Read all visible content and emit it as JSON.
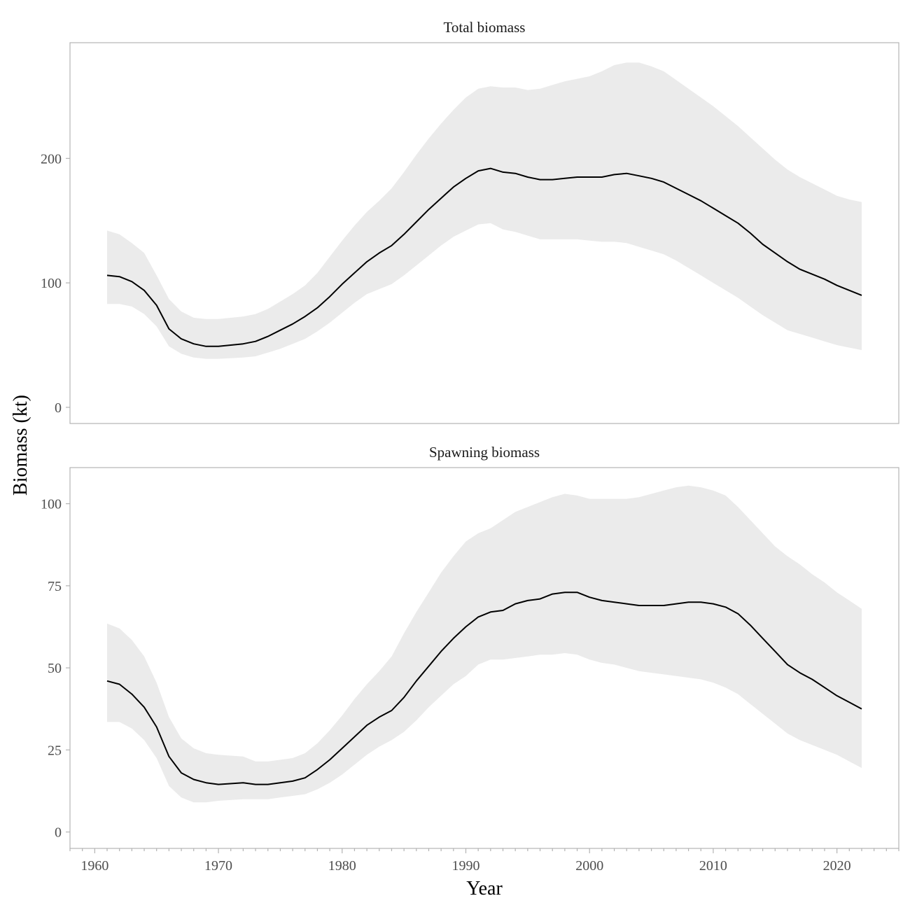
{
  "chart_data": {
    "type": "line",
    "xlabel": "Year",
    "ylabel": "Biomass (kt)",
    "shared_x_ticks": [
      1960,
      1970,
      1980,
      1990,
      2000,
      2010,
      2020
    ],
    "xlim": [
      1958,
      2025
    ],
    "panels": [
      {
        "title": "Total biomass",
        "ylim": [
          -13,
          293
        ],
        "y_ticks": [
          0,
          100,
          200
        ],
        "x": [
          1961,
          1962,
          1963,
          1964,
          1965,
          1966,
          1967,
          1968,
          1969,
          1970,
          1972,
          1973,
          1974,
          1975,
          1976,
          1977,
          1978,
          1979,
          1980,
          1981,
          1982,
          1983,
          1984,
          1985,
          1986,
          1987,
          1988,
          1989,
          1990,
          1991,
          1992,
          1993,
          1994,
          1995,
          1996,
          1997,
          1998,
          1999,
          2000,
          2001,
          2002,
          2003,
          2004,
          2005,
          2006,
          2007,
          2008,
          2009,
          2010,
          2011,
          2012,
          2013,
          2014,
          2015,
          2016,
          2017,
          2018,
          2019,
          2020,
          2021,
          2022
        ],
        "estimate": [
          106,
          105,
          101,
          94,
          82,
          63,
          55,
          51,
          49,
          49,
          51,
          53,
          57,
          62,
          67,
          73,
          80,
          89,
          99,
          108,
          117,
          124,
          130,
          139,
          149,
          159,
          168,
          177,
          184,
          190,
          192,
          189,
          188,
          185,
          183,
          183,
          184,
          185,
          185,
          185,
          187,
          188,
          186,
          184,
          181,
          176,
          171,
          166,
          160,
          154,
          148,
          140,
          131,
          124,
          117,
          111,
          107,
          103,
          98,
          94,
          90
        ],
        "lower": [
          83,
          83,
          81,
          75,
          65,
          49,
          43,
          40,
          39,
          39,
          40,
          41,
          44,
          47,
          51,
          55,
          61,
          68,
          76,
          84,
          91,
          95,
          99,
          106,
          114,
          122,
          130,
          137,
          142,
          147,
          148,
          143,
          141,
          138,
          135,
          135,
          135,
          135,
          134,
          133,
          133,
          132,
          129,
          126,
          123,
          118,
          112,
          106,
          100,
          94,
          88,
          81,
          74,
          68,
          62,
          59,
          56,
          53,
          50,
          48,
          46
        ],
        "upper": [
          142,
          139,
          132,
          124,
          106,
          87,
          77,
          72,
          71,
          71,
          73,
          75,
          79,
          85,
          91,
          98,
          108,
          121,
          134,
          146,
          157,
          166,
          176,
          189,
          203,
          216,
          228,
          239,
          249,
          256,
          258,
          257,
          257,
          255,
          256,
          259,
          262,
          264,
          266,
          270,
          275,
          277,
          277,
          274,
          270,
          263,
          256,
          249,
          242,
          234,
          226,
          217,
          208,
          199,
          191,
          185,
          180,
          175,
          170,
          167,
          165
        ]
      },
      {
        "title": "Spawning biomass",
        "ylim": [
          -5,
          111
        ],
        "y_ticks": [
          0,
          25,
          50,
          75,
          100
        ],
        "x": [
          1961,
          1962,
          1963,
          1964,
          1965,
          1966,
          1967,
          1968,
          1969,
          1970,
          1972,
          1973,
          1974,
          1975,
          1976,
          1977,
          1978,
          1979,
          1980,
          1981,
          1982,
          1983,
          1984,
          1985,
          1986,
          1987,
          1988,
          1989,
          1990,
          1991,
          1992,
          1993,
          1994,
          1995,
          1996,
          1997,
          1998,
          1999,
          2000,
          2001,
          2002,
          2003,
          2004,
          2005,
          2006,
          2007,
          2008,
          2009,
          2010,
          2011,
          2012,
          2013,
          2014,
          2015,
          2016,
          2017,
          2018,
          2019,
          2020,
          2021,
          2022
        ],
        "estimate": [
          46,
          45,
          42,
          38,
          32,
          23,
          18,
          16,
          15,
          14.5,
          15,
          14.5,
          14.5,
          15,
          15.5,
          16.5,
          19,
          22,
          25.5,
          29,
          32.5,
          35,
          37,
          41,
          46,
          50.5,
          55,
          59,
          62.5,
          65.5,
          67,
          67.5,
          69.5,
          70.5,
          71,
          72.5,
          73,
          73,
          71.5,
          70.5,
          70,
          69.5,
          69,
          69,
          69,
          69.5,
          70,
          70,
          69.5,
          68.5,
          66.5,
          63,
          59,
          55,
          51,
          48.5,
          46.5,
          44,
          41.5,
          39.5,
          37.5
        ],
        "lower": [
          33.5,
          33.5,
          31.5,
          28,
          22.5,
          14,
          10.5,
          9,
          9,
          9.5,
          10,
          10,
          10,
          10.5,
          11,
          11.5,
          13,
          15,
          17.5,
          20.5,
          23.5,
          26,
          28,
          30.5,
          34,
          38,
          41.5,
          45,
          47.5,
          51,
          52.5,
          52.5,
          53,
          53.5,
          54,
          54,
          54.5,
          54,
          52.5,
          51.5,
          51,
          50,
          49,
          48.5,
          48,
          47.5,
          47,
          46.5,
          45.5,
          44,
          42,
          39,
          36,
          33,
          30,
          28,
          26.5,
          25,
          23.5,
          21.5,
          19.5
        ],
        "upper": [
          63.5,
          62,
          58.5,
          53.5,
          45.5,
          35,
          28.5,
          25.5,
          24,
          23.5,
          23,
          21.5,
          21.5,
          22,
          22.5,
          24,
          27,
          31,
          35.5,
          40.5,
          45,
          49,
          53.5,
          60.5,
          67,
          73,
          79,
          84,
          88.5,
          91,
          92.5,
          95,
          97.5,
          99,
          100.5,
          102,
          103,
          102.5,
          101.5,
          101.5,
          101.5,
          101.5,
          102,
          103,
          104,
          105,
          105.5,
          105,
          104,
          102.5,
          99,
          95,
          91,
          87,
          84,
          81.5,
          78.5,
          76,
          73,
          70.5,
          68
        ]
      }
    ]
  }
}
